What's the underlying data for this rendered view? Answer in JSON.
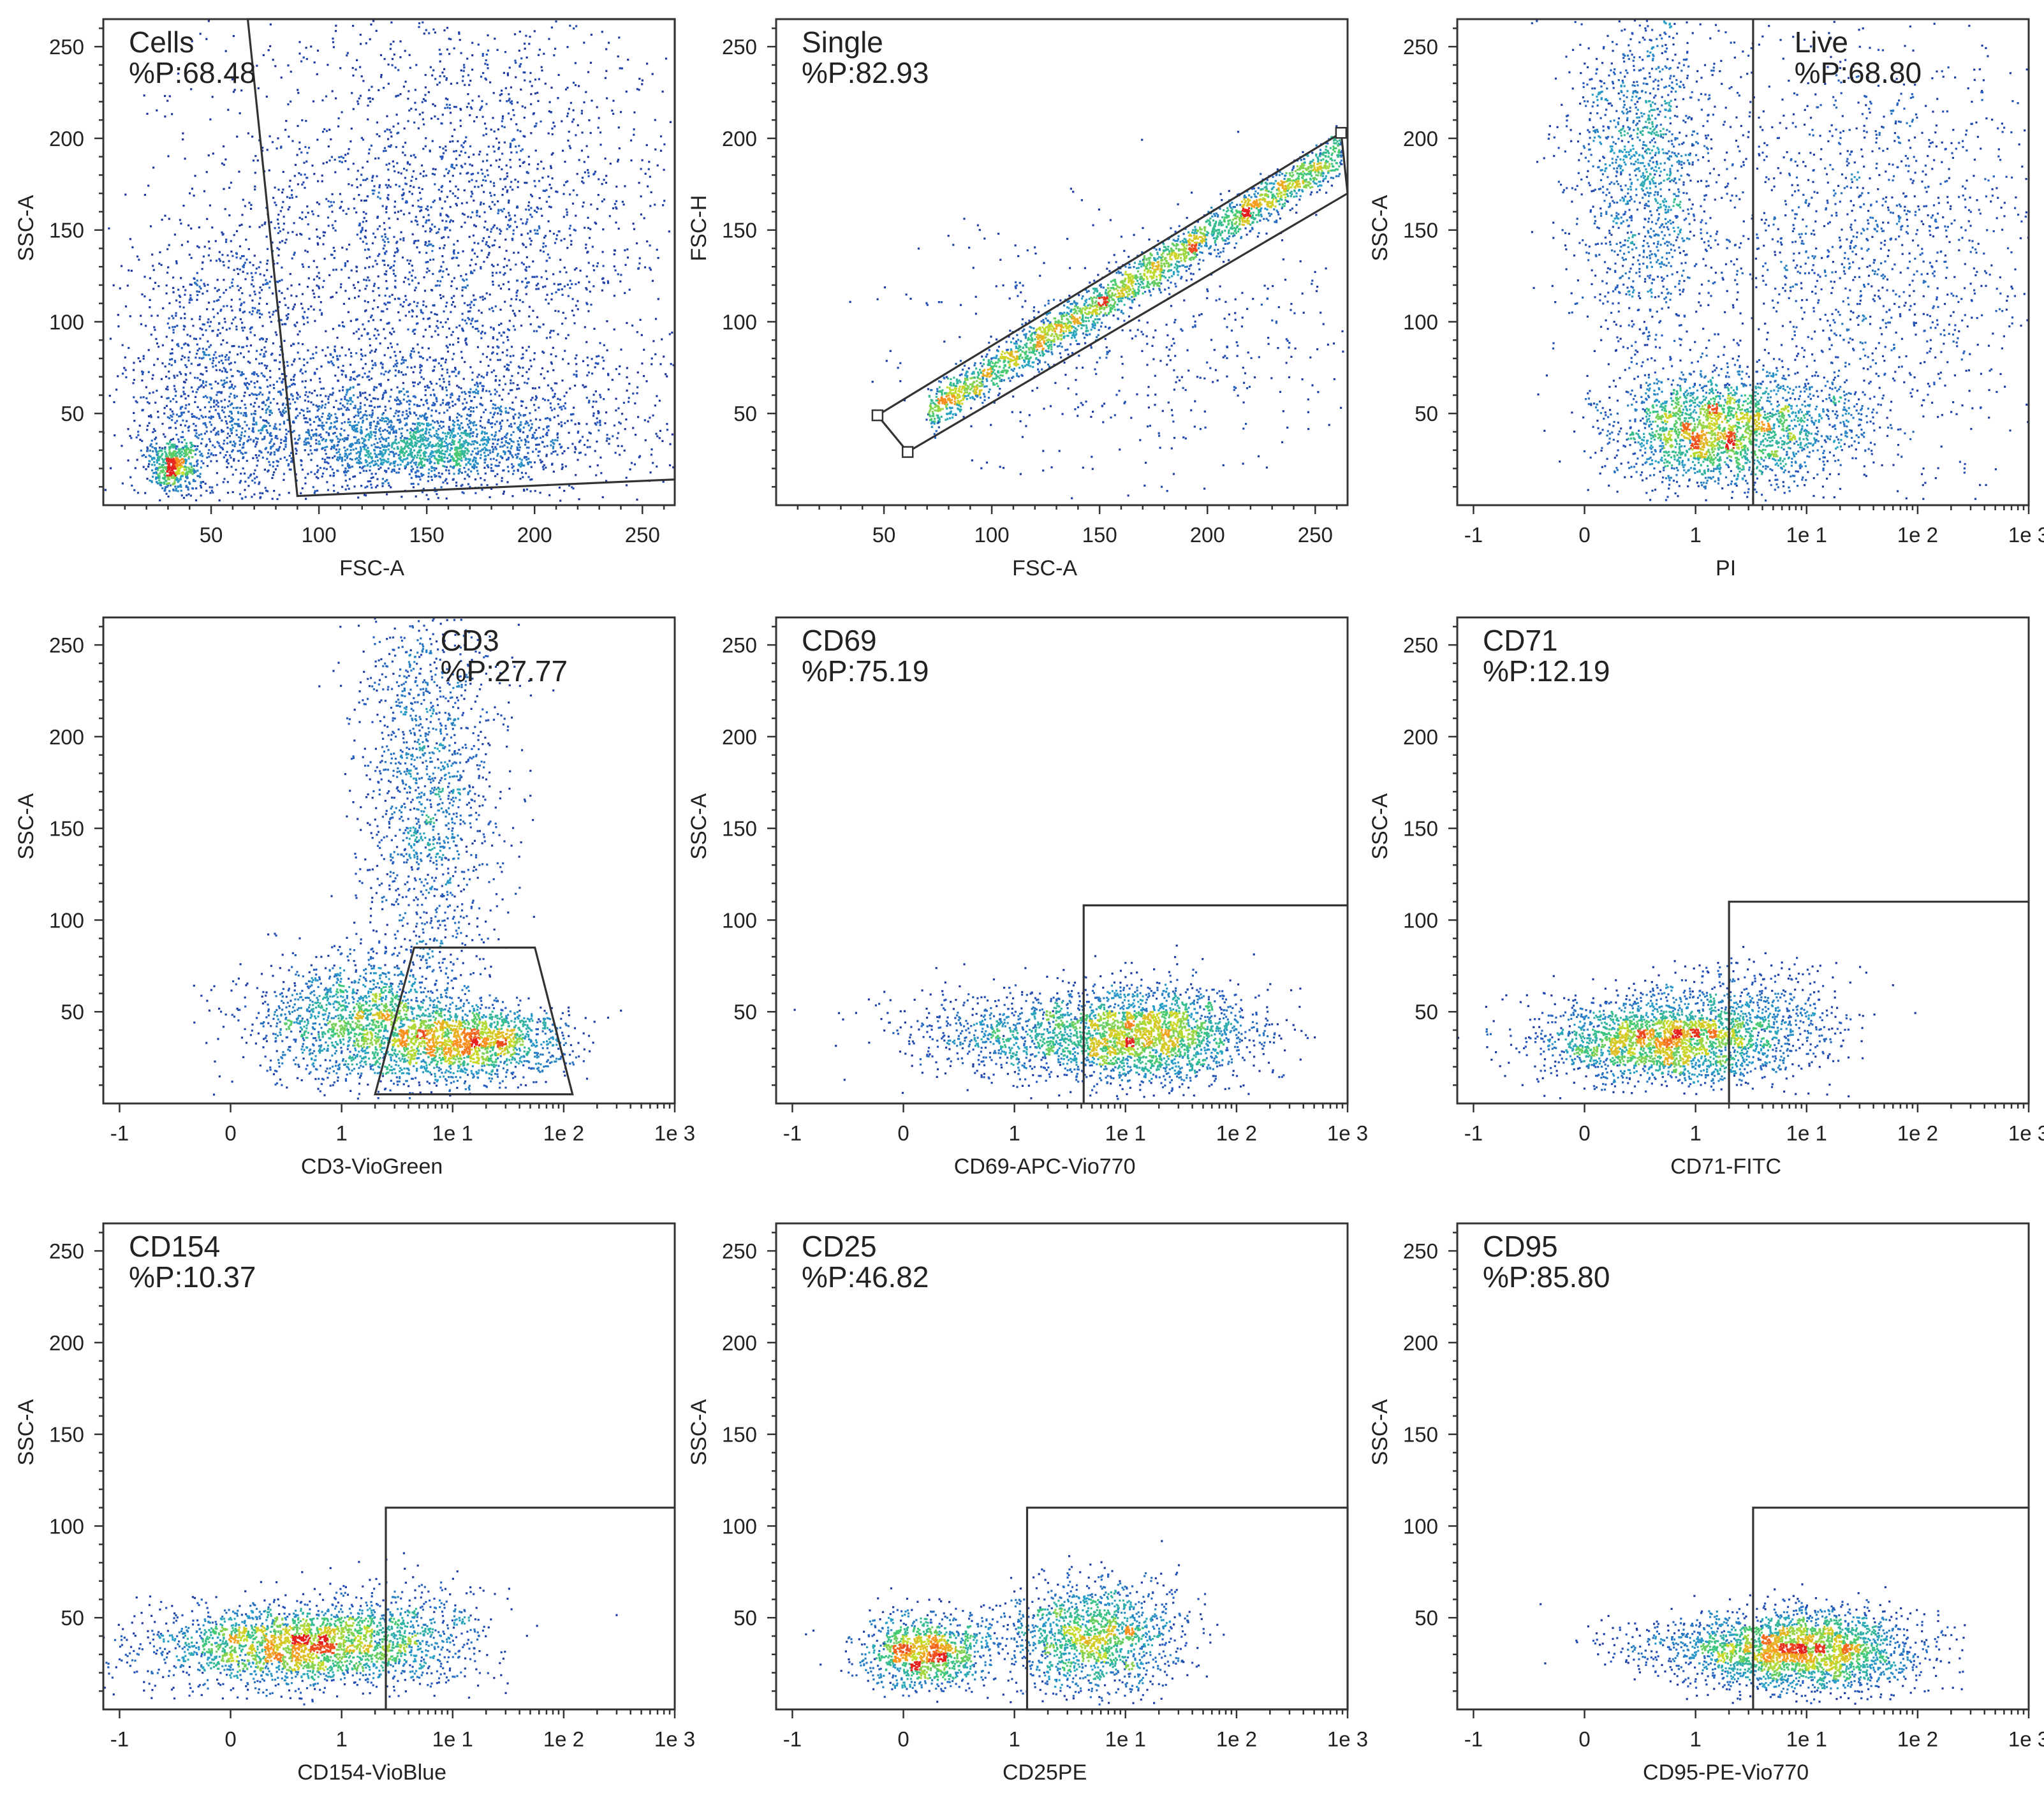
{
  "chart_data": [
    {
      "type": "scatter",
      "title": "",
      "xlabel": "FSC-A",
      "ylabel": "SSC-A",
      "xscale": "linear",
      "xlim": [
        0,
        265
      ],
      "ylim": [
        0,
        265
      ],
      "xticks": [
        {
          "v": 50,
          "label": "50"
        },
        {
          "v": 100,
          "label": "100"
        },
        {
          "v": 150,
          "label": "150"
        },
        {
          "v": 200,
          "label": "200"
        },
        {
          "v": 250,
          "label": "250"
        }
      ],
      "yticks": [
        {
          "v": 50,
          "label": "50"
        },
        {
          "v": 100,
          "label": "100"
        },
        {
          "v": 150,
          "label": "150"
        },
        {
          "v": 200,
          "label": "200"
        },
        {
          "v": 250,
          "label": "250"
        }
      ],
      "gate": {
        "name": "Cells",
        "percent": "%P:68.48",
        "label_pos": "top-left",
        "polygon": [
          [
            67,
            265
          ],
          [
            90,
            5
          ],
          [
            265,
            14
          ],
          [
            265,
            265
          ]
        ]
      },
      "populations": [
        {
          "cx": 160,
          "cy": 150,
          "sx": 55,
          "sy": 65,
          "n": 2600
        },
        {
          "cx": 130,
          "cy": 45,
          "sx": 65,
          "sy": 20,
          "n": 1800
        },
        {
          "cx": 150,
          "cy": 30,
          "sx": 25,
          "sy": 8,
          "n": 900
        },
        {
          "cx": 32,
          "cy": 22,
          "sx": 6,
          "sy": 7,
          "n": 500
        },
        {
          "cx": 55,
          "cy": 70,
          "sx": 22,
          "sy": 45,
          "n": 900
        }
      ],
      "density_peaks": [
        {
          "x": 32,
          "y": 20
        },
        {
          "x": 150,
          "y": 30
        }
      ],
      "grid": false,
      "legend": "none"
    },
    {
      "type": "scatter",
      "title": "",
      "xlabel": "FSC-A",
      "ylabel": "FSC-H",
      "xscale": "linear",
      "xlim": [
        0,
        265
      ],
      "ylim": [
        0,
        265
      ],
      "xticks": [
        {
          "v": 50,
          "label": "50"
        },
        {
          "v": 100,
          "label": "100"
        },
        {
          "v": 150,
          "label": "150"
        },
        {
          "v": 200,
          "label": "200"
        },
        {
          "v": 250,
          "label": "250"
        }
      ],
      "yticks": [
        {
          "v": 50,
          "label": "50"
        },
        {
          "v": 100,
          "label": "100"
        },
        {
          "v": 150,
          "label": "150"
        },
        {
          "v": 200,
          "label": "200"
        },
        {
          "v": 250,
          "label": "250"
        }
      ],
      "gate": {
        "name": "Single",
        "percent": "%P:82.93",
        "label_pos": "top-left",
        "polygon": [
          [
            47,
            49
          ],
          [
            61,
            29
          ],
          [
            265,
            170
          ],
          [
            262,
            203
          ]
        ],
        "handles": [
          [
            47,
            49
          ],
          [
            61,
            29
          ],
          [
            262,
            203
          ]
        ]
      },
      "populations": [
        {
          "diagonal": true,
          "x0": 70,
          "x1": 262,
          "slope": 0.74,
          "intercept": -0.5,
          "spread": 6,
          "n": 2600
        },
        {
          "cx": 170,
          "cy": 90,
          "sx": 55,
          "sy": 35,
          "n": 500
        }
      ],
      "density_peaks": [
        {
          "x": 150,
          "y": 110
        }
      ],
      "grid": false,
      "legend": "none"
    },
    {
      "type": "scatter",
      "title": "",
      "xlabel": "PI",
      "ylabel": "SSC-A",
      "xscale": "biexponential",
      "xlim": [
        -1.4,
        1000
      ],
      "ylim": [
        0,
        265
      ],
      "xticks": [
        {
          "v": -1,
          "label": "-1"
        },
        {
          "v": 0,
          "label": "0"
        },
        {
          "v": 1,
          "label": "1"
        },
        {
          "v": 10,
          "label": "1e 1"
        },
        {
          "v": 100,
          "label": "1e 2"
        },
        {
          "v": 1000,
          "label": "1e 3"
        }
      ],
      "yticks": [
        {
          "v": 50,
          "label": "50"
        },
        {
          "v": 100,
          "label": "100"
        },
        {
          "v": 150,
          "label": "150"
        },
        {
          "v": 200,
          "label": "200"
        },
        {
          "v": 250,
          "label": "250"
        }
      ],
      "gate": {
        "name": "Live",
        "percent": "%P:68.80",
        "label_pos": "top-right",
        "polygon": [
          [
            3.3,
            265
          ],
          [
            3.3,
            0
          ]
        ]
      },
      "populations": [
        {
          "cx": 0.55,
          "cy": 185,
          "sx": 0.55,
          "sy": 55,
          "n": 1500
        },
        {
          "cx": 1.2,
          "cy": 40,
          "sx": 1.0,
          "sy": 15,
          "n": 1600
        },
        {
          "cx": 40,
          "cy": 140,
          "sx": 150,
          "sy": 60,
          "n": 1400
        },
        {
          "cx": 6,
          "cy": 45,
          "sx": 6,
          "sy": 15,
          "n": 700
        }
      ],
      "density_peaks": [
        {
          "x": 0.5,
          "y": 35
        }
      ],
      "grid": false,
      "legend": "none"
    },
    {
      "type": "scatter",
      "title": "",
      "xlabel": "CD3-VioGreen",
      "ylabel": "SSC-A",
      "xscale": "biexponential",
      "xlim": [
        -1.4,
        1000
      ],
      "ylim": [
        0,
        265
      ],
      "xticks": [
        {
          "v": -1,
          "label": "-1"
        },
        {
          "v": 0,
          "label": "0"
        },
        {
          "v": 1,
          "label": "1"
        },
        {
          "v": 10,
          "label": "1e 1"
        },
        {
          "v": 100,
          "label": "1e 2"
        },
        {
          "v": 1000,
          "label": "1e 3"
        }
      ],
      "yticks": [
        {
          "v": 50,
          "label": "50"
        },
        {
          "v": 100,
          "label": "100"
        },
        {
          "v": 150,
          "label": "150"
        },
        {
          "v": 200,
          "label": "200"
        },
        {
          "v": 250,
          "label": "250"
        }
      ],
      "gate": {
        "name": "CD3",
        "percent": "%P:27.77",
        "label_pos": "top-right",
        "polygon": [
          [
            2,
            5
          ],
          [
            4.5,
            85
          ],
          [
            55,
            85
          ],
          [
            120,
            5
          ]
        ]
      },
      "populations": [
        {
          "cx": 6,
          "cy": 175,
          "sx": 3,
          "sy": 60,
          "n": 1500
        },
        {
          "cx": 1.5,
          "cy": 45,
          "sx": 1.8,
          "sy": 18,
          "n": 1700
        },
        {
          "cx": 15,
          "cy": 33,
          "sx": 12,
          "sy": 10,
          "n": 1400
        }
      ],
      "density_peaks": [
        {
          "x": 17,
          "y": 33
        }
      ],
      "grid": false,
      "legend": "none"
    },
    {
      "type": "scatter",
      "title": "",
      "xlabel": "CD69-APC-Vio770",
      "ylabel": "SSC-A",
      "xscale": "biexponential",
      "xlim": [
        -1.4,
        1000
      ],
      "ylim": [
        0,
        265
      ],
      "xticks": [
        {
          "v": -1,
          "label": "-1"
        },
        {
          "v": 0,
          "label": "0"
        },
        {
          "v": 1,
          "label": "1"
        },
        {
          "v": 10,
          "label": "1e 1"
        },
        {
          "v": 100,
          "label": "1e 2"
        },
        {
          "v": 1000,
          "label": "1e 3"
        }
      ],
      "yticks": [
        {
          "v": 50,
          "label": "50"
        },
        {
          "v": 100,
          "label": "100"
        },
        {
          "v": 150,
          "label": "150"
        },
        {
          "v": 200,
          "label": "200"
        },
        {
          "v": 250,
          "label": "250"
        }
      ],
      "gate": {
        "name": "CD69",
        "percent": "%P:75.19",
        "label_pos": "top-left",
        "polygon": [
          [
            4.2,
            0
          ],
          [
            4.2,
            108
          ],
          [
            1000,
            108
          ]
        ]
      },
      "populations": [
        {
          "cx": 15,
          "cy": 38,
          "sx": 18,
          "sy": 13,
          "n": 2200
        },
        {
          "cx": 1.0,
          "cy": 38,
          "sx": 1.3,
          "sy": 12,
          "n": 700
        }
      ],
      "density_peaks": [
        {
          "x": 20,
          "y": 35
        }
      ],
      "grid": false,
      "legend": "none"
    },
    {
      "type": "scatter",
      "title": "",
      "xlabel": "CD71-FITC",
      "ylabel": "SSC-A",
      "xscale": "biexponential",
      "xlim": [
        -1.4,
        1000
      ],
      "ylim": [
        0,
        265
      ],
      "xticks": [
        {
          "v": -1,
          "label": "-1"
        },
        {
          "v": 0,
          "label": "0"
        },
        {
          "v": 1,
          "label": "1"
        },
        {
          "v": 10,
          "label": "1e 1"
        },
        {
          "v": 100,
          "label": "1e 2"
        },
        {
          "v": 1000,
          "label": "1e 3"
        }
      ],
      "yticks": [
        {
          "v": 50,
          "label": "50"
        },
        {
          "v": 100,
          "label": "100"
        },
        {
          "v": 150,
          "label": "150"
        },
        {
          "v": 200,
          "label": "200"
        },
        {
          "v": 250,
          "label": "250"
        }
      ],
      "gate": {
        "name": "CD71",
        "percent": "%P:12.19",
        "label_pos": "top-left",
        "polygon": [
          [
            2,
            0
          ],
          [
            2,
            110
          ],
          [
            1000,
            110
          ]
        ]
      },
      "populations": [
        {
          "cx": 0.7,
          "cy": 35,
          "sx": 0.9,
          "sy": 12,
          "n": 2300
        },
        {
          "cx": 3.5,
          "cy": 45,
          "sx": 3,
          "sy": 15,
          "n": 500
        }
      ],
      "density_peaks": [
        {
          "x": 0.5,
          "y": 33
        }
      ],
      "grid": false,
      "legend": "none"
    },
    {
      "type": "scatter",
      "title": "",
      "xlabel": "CD154-VioBlue",
      "ylabel": "SSC-A",
      "xscale": "biexponential",
      "xlim": [
        -1.4,
        1000
      ],
      "ylim": [
        0,
        265
      ],
      "xticks": [
        {
          "v": -1,
          "label": "-1"
        },
        {
          "v": 0,
          "label": "0"
        },
        {
          "v": 1,
          "label": "1"
        },
        {
          "v": 10,
          "label": "1e 1"
        },
        {
          "v": 100,
          "label": "1e 2"
        },
        {
          "v": 1000,
          "label": "1e 3"
        }
      ],
      "yticks": [
        {
          "v": 50,
          "label": "50"
        },
        {
          "v": 100,
          "label": "100"
        },
        {
          "v": 150,
          "label": "150"
        },
        {
          "v": 200,
          "label": "200"
        },
        {
          "v": 250,
          "label": "250"
        }
      ],
      "gate": {
        "name": "CD154",
        "percent": "%P:10.37",
        "label_pos": "top-left",
        "polygon": [
          [
            2.5,
            0
          ],
          [
            2.5,
            110
          ],
          [
            1000,
            110
          ]
        ]
      },
      "populations": [
        {
          "cx": 0.6,
          "cy": 35,
          "sx": 1.1,
          "sy": 11,
          "n": 2300
        },
        {
          "cx": 4,
          "cy": 45,
          "sx": 3,
          "sy": 15,
          "n": 400
        }
      ],
      "density_peaks": [
        {
          "x": 1,
          "y": 35
        }
      ],
      "grid": false,
      "legend": "none"
    },
    {
      "type": "scatter",
      "title": "",
      "xlabel": "CD25PE",
      "ylabel": "SSC-A",
      "xscale": "biexponential",
      "xlim": [
        -1.4,
        1000
      ],
      "ylim": [
        0,
        265
      ],
      "xticks": [
        {
          "v": -1,
          "label": "-1"
        },
        {
          "v": 0,
          "label": "0"
        },
        {
          "v": 1,
          "label": "1"
        },
        {
          "v": 10,
          "label": "1e 1"
        },
        {
          "v": 100,
          "label": "1e 2"
        },
        {
          "v": 1000,
          "label": "1e 3"
        }
      ],
      "yticks": [
        {
          "v": 50,
          "label": "50"
        },
        {
          "v": 100,
          "label": "100"
        },
        {
          "v": 150,
          "label": "150"
        },
        {
          "v": 200,
          "label": "200"
        },
        {
          "v": 250,
          "label": "250"
        }
      ],
      "gate": {
        "name": "CD25",
        "percent": "%P:46.82",
        "label_pos": "top-left",
        "polygon": [
          [
            1.3,
            0
          ],
          [
            1.3,
            110
          ],
          [
            1000,
            110
          ],
          [
            1000,
            0
          ]
        ]
      },
      "populations": [
        {
          "cx": 0.2,
          "cy": 32,
          "sx": 0.5,
          "sy": 10,
          "n": 1100
        },
        {
          "cx": 5,
          "cy": 40,
          "sx": 4,
          "sy": 15,
          "n": 1500
        }
      ],
      "density_peaks": [
        {
          "x": 0.2,
          "y": 30
        }
      ],
      "grid": false,
      "legend": "none"
    },
    {
      "type": "scatter",
      "title": "",
      "xlabel": "CD95-PE-Vio770",
      "ylabel": "SSC-A",
      "xscale": "biexponential",
      "xlim": [
        -1.4,
        1000
      ],
      "ylim": [
        0,
        265
      ],
      "xticks": [
        {
          "v": -1,
          "label": "-1"
        },
        {
          "v": 0,
          "label": "0"
        },
        {
          "v": 1,
          "label": "1"
        },
        {
          "v": 10,
          "label": "1e 1"
        },
        {
          "v": 100,
          "label": "1e 2"
        },
        {
          "v": 1000,
          "label": "1e 3"
        }
      ],
      "yticks": [
        {
          "v": 50,
          "label": "50"
        },
        {
          "v": 100,
          "label": "100"
        },
        {
          "v": 150,
          "label": "150"
        },
        {
          "v": 200,
          "label": "200"
        },
        {
          "v": 250,
          "label": "250"
        }
      ],
      "gate": {
        "name": "CD95",
        "percent": "%P:85.80",
        "label_pos": "top-left",
        "polygon": [
          [
            3.3,
            0
          ],
          [
            3.3,
            110
          ],
          [
            1000,
            110
          ]
        ]
      },
      "populations": [
        {
          "cx": 10,
          "cy": 33,
          "sx": 12,
          "sy": 11,
          "n": 2300
        },
        {
          "cx": 1.2,
          "cy": 35,
          "sx": 1.8,
          "sy": 8,
          "n": 400
        }
      ],
      "density_peaks": [
        {
          "x": 8,
          "y": 32
        }
      ],
      "grid": false,
      "legend": "none"
    }
  ]
}
